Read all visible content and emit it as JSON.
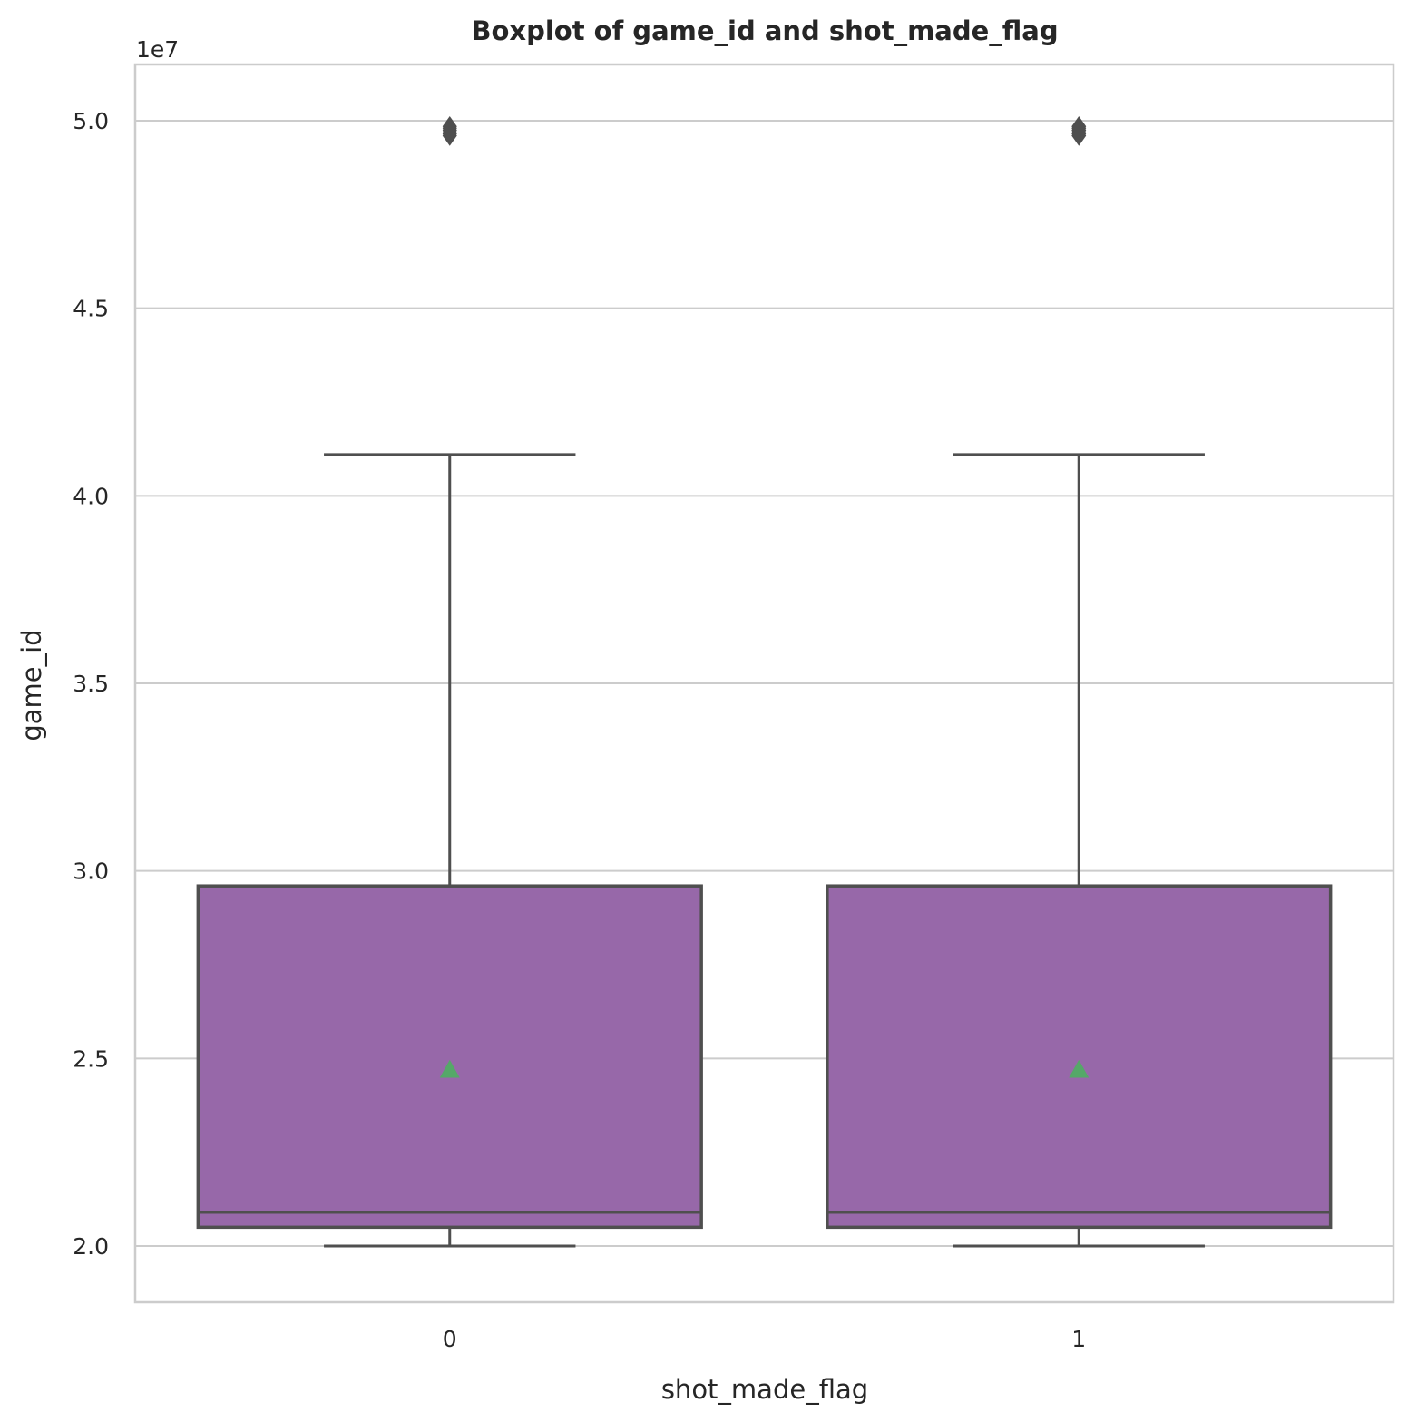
{
  "chart_data": {
    "type": "boxplot",
    "title": "Boxplot of game_id and shot_made_flag",
    "xlabel": "shot_made_flag",
    "ylabel": "game_id",
    "y_offset_label": "1e7",
    "y_scale": 10000000,
    "ylim": [
      1.85,
      5.15
    ],
    "y_ticks": [
      2.0,
      2.5,
      3.0,
      3.5,
      4.0,
      4.5,
      5.0
    ],
    "y_tick_labels": [
      "2.0",
      "2.5",
      "3.0",
      "3.5",
      "4.0",
      "4.5",
      "5.0"
    ],
    "grid": true,
    "categories": [
      "0",
      "1"
    ],
    "boxes": [
      {
        "category": "0",
        "whisker_low": 2.0,
        "q1": 2.05,
        "median": 2.09,
        "q3": 2.96,
        "whisker_high": 4.11,
        "mean": 2.47,
        "outliers": [
          4.96,
          4.965,
          4.97,
          4.975,
          4.98,
          4.985
        ]
      },
      {
        "category": "1",
        "whisker_low": 2.0,
        "q1": 2.05,
        "median": 2.09,
        "q3": 2.96,
        "whisker_high": 4.11,
        "mean": 2.47,
        "outliers": [
          4.96,
          4.965,
          4.97,
          4.975,
          4.98,
          4.985
        ]
      }
    ],
    "colors": {
      "box_fill": "#9768a9",
      "line": "#4f4f4f",
      "mean_marker": "#55a868",
      "grid": "#cccccc",
      "frame": "#cccccc"
    }
  }
}
